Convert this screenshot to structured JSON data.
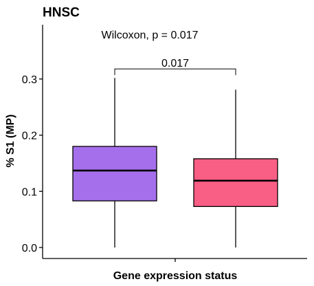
{
  "chart_data": {
    "type": "box",
    "title": "HNSC",
    "xlabel": "Gene expression status",
    "ylabel": "% S1 (MP)",
    "ylim": [
      -0.02,
      0.39
    ],
    "yticks": [
      0.0,
      0.1,
      0.2,
      0.3
    ],
    "ytick_labels": [
      "0.0",
      "0.1",
      "0.2",
      "0.3"
    ],
    "grid": false,
    "legend": "none",
    "boxes": [
      {
        "color": "#a56feb",
        "min": 0.0,
        "q1": 0.083,
        "median": 0.137,
        "q3": 0.18,
        "max": 0.302
      },
      {
        "color": "#f95e85",
        "min": 0.0,
        "q1": 0.073,
        "median": 0.119,
        "q3": 0.158,
        "max": 0.281
      }
    ],
    "annotations": {
      "test_label": "Wilcoxon, p = 0.017",
      "bracket_label": "0.017",
      "bracket_y": 0.318
    }
  }
}
